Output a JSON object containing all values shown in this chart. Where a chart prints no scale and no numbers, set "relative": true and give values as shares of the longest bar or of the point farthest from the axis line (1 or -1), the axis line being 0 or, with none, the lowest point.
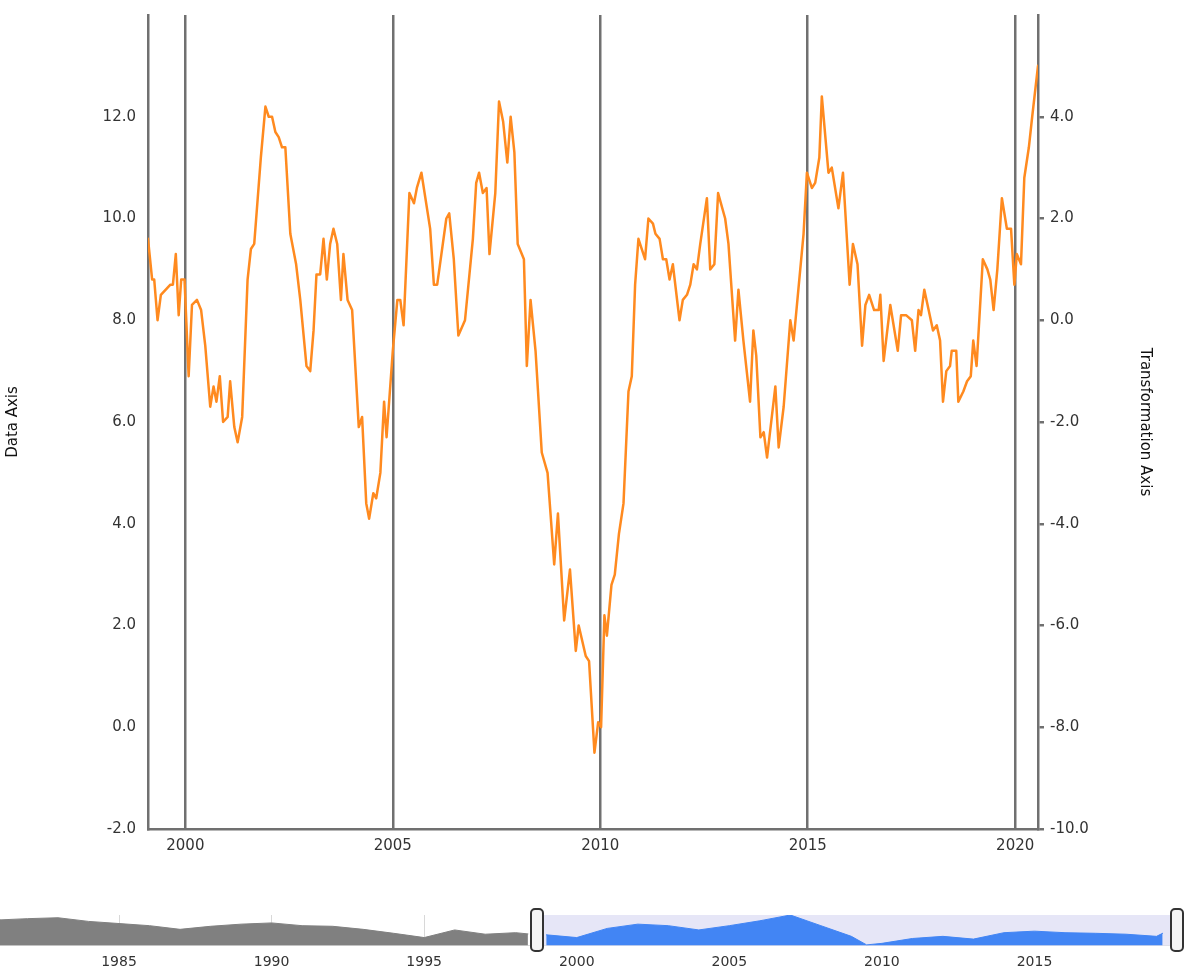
{
  "chart_data": [
    {
      "type": "line",
      "ylabel": "Data Axis",
      "y2label": "Transformation Axis",
      "xlim": [
        1999.1,
        2020.55
      ],
      "xticks": [
        2000,
        2005,
        2010,
        2015,
        2020
      ],
      "ylim": [
        -2,
        14
      ],
      "yticks": [
        {
          "value": -2,
          "label": "-2.0"
        },
        {
          "value": 0,
          "label": "0.0"
        },
        {
          "value": 2,
          "label": "2.0"
        },
        {
          "value": 4,
          "label": "4.0"
        },
        {
          "value": 6,
          "label": "6.0"
        },
        {
          "value": 8,
          "label": "8.0"
        },
        {
          "value": 10,
          "label": "10.0"
        },
        {
          "value": 12,
          "label": "12.0"
        }
      ],
      "y2lim": [
        -10,
        6
      ],
      "y2ticks": [
        {
          "value": -10,
          "label": "-10.0"
        },
        {
          "value": -8,
          "label": "-8.0"
        },
        {
          "value": -6,
          "label": "-6.0"
        },
        {
          "value": -4,
          "label": "-4.0"
        },
        {
          "value": -2,
          "label": "-2.0"
        },
        {
          "value": 0,
          "label": "0.0"
        },
        {
          "value": 2,
          "label": "2.0"
        },
        {
          "value": 4,
          "label": "4.0"
        }
      ],
      "grid": "x",
      "legend": false,
      "marker": "none",
      "line_style": "solid",
      "series": [
        {
          "color": "#ff8a1f",
          "x": [
            1999.1,
            1999.2,
            1999.25,
            1999.33,
            1999.41,
            1999.64,
            1999.7,
            1999.77,
            1999.84,
            1999.9,
            1999.98,
            2000.08,
            2000.16,
            2000.28,
            2000.38,
            2000.48,
            2000.6,
            2000.68,
            2000.75,
            2000.83,
            2000.91,
            2001.02,
            2001.08,
            2001.18,
            2001.26,
            2001.37,
            2001.5,
            2001.58,
            2001.66,
            2001.82,
            2001.93,
            2002.01,
            2002.09,
            2002.17,
            2002.25,
            2002.33,
            2002.41,
            2002.53,
            2002.67,
            2002.77,
            2002.92,
            2003.01,
            2003.09,
            2003.16,
            2003.25,
            2003.33,
            2003.41,
            2003.49,
            2003.57,
            2003.66,
            2003.75,
            2003.81,
            2003.91,
            2004.02,
            2004.18,
            2004.26,
            2004.36,
            2004.43,
            2004.53,
            2004.6,
            2004.7,
            2004.79,
            2004.85,
            2005.0,
            2005.11,
            2005.18,
            2005.26,
            2005.4,
            2005.51,
            2005.58,
            2005.69,
            2005.9,
            2005.99,
            2006.07,
            2006.29,
            2006.36,
            2006.47,
            2006.58,
            2006.74,
            2006.93,
            2007.01,
            2007.08,
            2007.17,
            2007.26,
            2007.33,
            2007.47,
            2007.56,
            2007.66,
            2007.76,
            2007.84,
            2007.93,
            2008.01,
            2008.16,
            2008.23,
            2008.32,
            2008.44,
            2008.59,
            2008.73,
            2008.89,
            2008.98,
            2009.13,
            2009.27,
            2009.41,
            2009.48,
            2009.65,
            2009.73,
            2009.86,
            2009.95,
            2010.02,
            2010.1,
            2010.16,
            2010.27,
            2010.35,
            2010.45,
            2010.56,
            2010.68,
            2010.76,
            2010.84,
            2010.92,
            2011.08,
            2011.16,
            2011.27,
            2011.33,
            2011.43,
            2011.51,
            2011.59,
            2011.67,
            2011.75,
            2011.91,
            2011.99,
            2012.09,
            2012.17,
            2012.25,
            2012.33,
            2012.41,
            2012.57,
            2012.65,
            2012.75,
            2012.84,
            2013.01,
            2013.09,
            2013.25,
            2013.33,
            2013.45,
            2013.61,
            2013.69,
            2013.76,
            2013.86,
            2013.94,
            2014.02,
            2014.22,
            2014.3,
            2014.42,
            2014.58,
            2014.66,
            2014.9,
            2014.98,
            2015.1,
            2015.18,
            2015.28,
            2015.34,
            2015.5,
            2015.58,
            2015.74,
            2015.85,
            2016.01,
            2016.09,
            2016.2,
            2016.31,
            2016.39,
            2016.48,
            2016.6,
            2016.71,
            2016.75,
            2016.83,
            2016.99,
            2017.17,
            2017.25,
            2017.37,
            2017.51,
            2017.59,
            2017.67,
            2017.73,
            2017.81,
            2018.02,
            2018.11,
            2018.19,
            2018.26,
            2018.34,
            2018.43,
            2018.47,
            2018.58,
            2018.63,
            2018.75,
            2018.84,
            2018.93,
            2018.99,
            2019.07,
            2019.22,
            2019.33,
            2019.4,
            2019.48,
            2019.57,
            2019.68,
            2019.8,
            2019.9,
            2019.98,
            2020.04,
            2020.14,
            2020.22,
            2020.33,
            2020.41,
            2020.55
          ],
          "values": [
            9.6,
            8.8,
            8.8,
            8.0,
            8.5,
            8.7,
            8.7,
            9.3,
            8.1,
            8.8,
            8.8,
            6.9,
            8.3,
            8.4,
            8.2,
            7.5,
            6.3,
            6.7,
            6.4,
            6.9,
            6.0,
            6.1,
            6.8,
            5.9,
            5.6,
            6.1,
            8.8,
            9.4,
            9.5,
            11.2,
            12.2,
            12.0,
            12.0,
            11.7,
            11.6,
            11.4,
            11.4,
            9.7,
            9.1,
            8.4,
            7.1,
            7.0,
            7.8,
            8.9,
            8.9,
            9.6,
            8.8,
            9.5,
            9.8,
            9.5,
            8.4,
            9.3,
            8.4,
            8.2,
            5.9,
            6.1,
            4.4,
            4.1,
            4.6,
            4.5,
            5.0,
            6.4,
            5.7,
            7.4,
            8.4,
            8.4,
            7.9,
            10.5,
            10.3,
            10.6,
            10.9,
            9.8,
            8.7,
            8.7,
            10.0,
            10.1,
            9.2,
            7.7,
            8.0,
            9.6,
            10.7,
            10.9,
            10.5,
            10.6,
            9.3,
            10.5,
            12.3,
            11.9,
            11.1,
            12.0,
            11.3,
            9.5,
            9.2,
            7.1,
            8.4,
            7.4,
            5.4,
            5.0,
            3.2,
            4.2,
            2.1,
            3.1,
            1.5,
            2.0,
            1.4,
            1.3,
            -0.5,
            0.1,
            0.0,
            2.2,
            1.8,
            2.8,
            3.0,
            3.8,
            4.4,
            6.6,
            6.9,
            8.7,
            9.6,
            9.2,
            10.0,
            9.9,
            9.7,
            9.6,
            9.2,
            9.2,
            8.8,
            9.1,
            8.0,
            8.4,
            8.5,
            8.7,
            9.1,
            9.0,
            9.5,
            10.4,
            9.0,
            9.1,
            10.5,
            10.0,
            9.5,
            7.6,
            8.6,
            7.6,
            6.4,
            7.8,
            7.3,
            5.7,
            5.8,
            5.3,
            6.7,
            5.5,
            6.3,
            8.0,
            7.6,
            9.7,
            10.9,
            10.6,
            10.7,
            11.2,
            12.4,
            10.9,
            11.0,
            10.2,
            10.9,
            8.7,
            9.5,
            9.1,
            7.5,
            8.3,
            8.5,
            8.2,
            8.2,
            8.5,
            7.2,
            8.3,
            7.4,
            8.1,
            8.1,
            8.0,
            7.4,
            8.2,
            8.1,
            8.6,
            7.8,
            7.9,
            7.6,
            6.4,
            7.0,
            7.1,
            7.4,
            7.4,
            6.4,
            6.6,
            6.8,
            6.9,
            7.6,
            7.1,
            9.2,
            9.0,
            8.8,
            8.2,
            9.0,
            10.4,
            9.8,
            9.8,
            8.7,
            9.3,
            9.1,
            10.8,
            11.4,
            12.0,
            13.0
          ]
        }
      ]
    },
    {
      "type": "area",
      "relative": true,
      "xlim": [
        1981.1,
        2019.9
      ],
      "xticks": [
        1985,
        1990,
        1995,
        2000,
        2005,
        2010,
        2015
      ],
      "grid": "x",
      "legend": false,
      "bands": [
        {
          "axis": "x",
          "from": 1998.7,
          "to": 2019.9,
          "color": "#e6e6f7"
        }
      ],
      "series": [
        {
          "color": "#808080",
          "x": [
            1981.1,
            1982,
            1983,
            1984,
            1985,
            1986,
            1987,
            1988,
            1989,
            1990,
            1991,
            1992,
            1993,
            1994,
            1995,
            1996,
            1997,
            1998,
            1998.4
          ],
          "values": [
            0.84,
            0.88,
            0.91,
            0.79,
            0.72,
            0.65,
            0.53,
            0.63,
            0.7,
            0.74,
            0.65,
            0.63,
            0.53,
            0.4,
            0.26,
            0.51,
            0.37,
            0.42,
            0.38
          ]
        },
        {
          "color": "#4285f4",
          "x": [
            1999,
            2000,
            2001,
            2002,
            2003,
            2004,
            2005,
            2006,
            2007,
            2008,
            2009,
            2009.5,
            2010,
            2011,
            2012,
            2013,
            2014,
            2015,
            2016,
            2017,
            2018,
            2019,
            2019.2
          ],
          "values": [
            0.35,
            0.26,
            0.56,
            0.7,
            0.65,
            0.51,
            0.65,
            0.81,
            1,
            0.65,
            0.3,
            0.02,
            0.07,
            0.23,
            0.3,
            0.21,
            0.42,
            0.47,
            0.42,
            0.4,
            0.37,
            0.3,
            0.4
          ]
        }
      ]
    }
  ]
}
